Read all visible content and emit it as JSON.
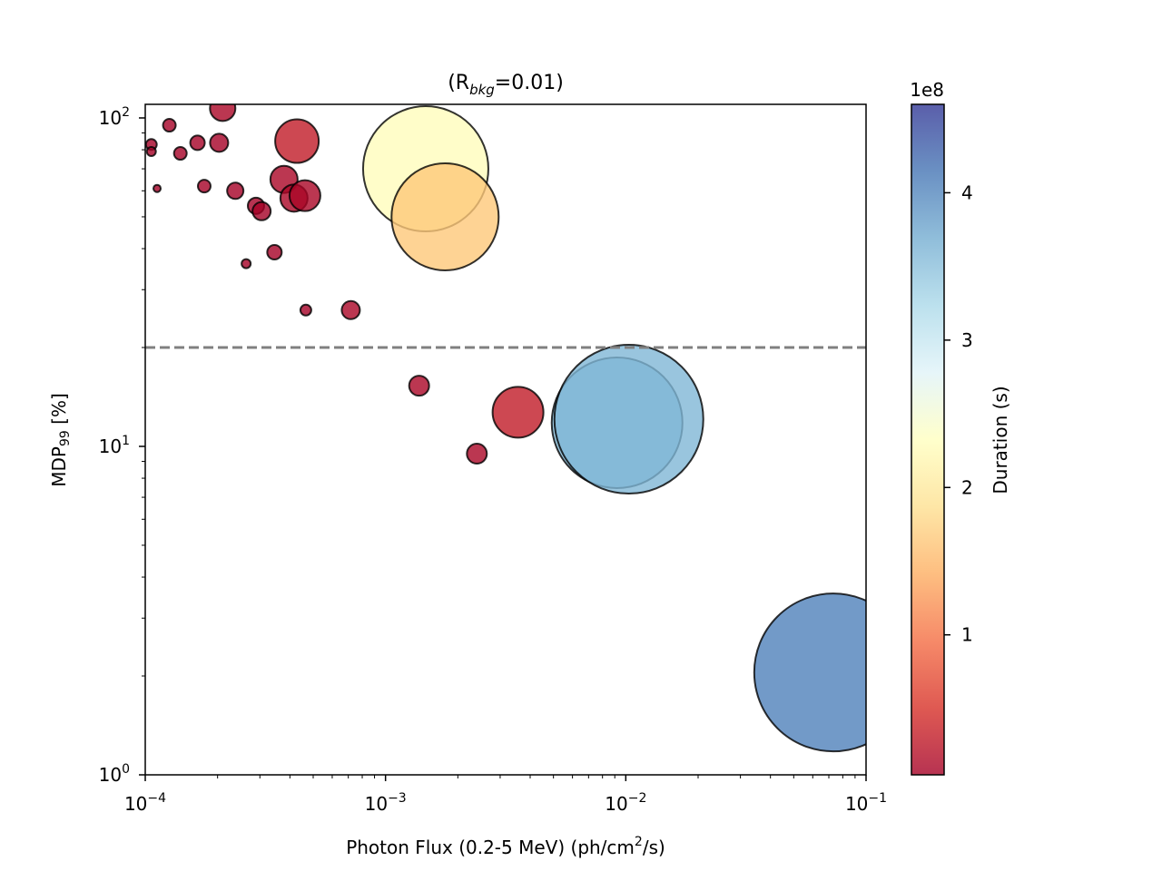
{
  "chart_data": {
    "type": "scatter",
    "title": {
      "pre": "(R",
      "sub": "bkg",
      "post": "=0.01)"
    },
    "xlabel": {
      "pre": "Photon Flux (0.2-5 MeV) (ph/cm",
      "sup": "2",
      "post": "/s)"
    },
    "ylabel": {
      "pre": "MDP",
      "sub": "99",
      "post": " [%]"
    },
    "x_scale": "log",
    "y_scale": "log",
    "xlim": [
      0.0001,
      0.1
    ],
    "ylim": [
      1,
      110
    ],
    "x_ticks": [
      {
        "value": 0.0001,
        "base": "10",
        "exp": "−4"
      },
      {
        "value": 0.001,
        "base": "10",
        "exp": "−3"
      },
      {
        "value": 0.01,
        "base": "10",
        "exp": "−2"
      },
      {
        "value": 0.1,
        "base": "10",
        "exp": "−1"
      }
    ],
    "y_ticks": [
      {
        "value": 1,
        "base": "10",
        "exp": "0"
      },
      {
        "value": 10,
        "base": "10",
        "exp": "1"
      },
      {
        "value": 100,
        "base": "10",
        "exp": "2"
      }
    ],
    "threshold": {
      "y": 20,
      "style": "dashed",
      "color": "#808080"
    },
    "colorbar": {
      "label": "Duration (s)",
      "offset_text": "1e8",
      "range": [
        0.05,
        4.6
      ],
      "ticks": [
        "1",
        "2",
        "3",
        "4"
      ],
      "tick_values": [
        1,
        2,
        3,
        4
      ],
      "colormap": "RdYlBu",
      "stops": [
        "#a50026",
        "#d73027",
        "#f46d43",
        "#fdae61",
        "#fee090",
        "#ffffbf",
        "#e0f3f8",
        "#abd9e9",
        "#74add1",
        "#4575b4",
        "#313695"
      ]
    },
    "points": [
      {
        "x": 0.000106,
        "y": 83,
        "size": 6,
        "duration": 0.05
      },
      {
        "x": 0.000106,
        "y": 79,
        "size": 5,
        "duration": 0.05
      },
      {
        "x": 0.000112,
        "y": 61,
        "size": 4,
        "duration": 0.05
      },
      {
        "x": 0.000126,
        "y": 95,
        "size": 7,
        "duration": 0.05
      },
      {
        "x": 0.00014,
        "y": 78,
        "size": 7,
        "duration": 0.05
      },
      {
        "x": 0.000165,
        "y": 84,
        "size": 8,
        "duration": 0.05
      },
      {
        "x": 0.000176,
        "y": 62,
        "size": 7,
        "duration": 0.05
      },
      {
        "x": 0.000203,
        "y": 84,
        "size": 10,
        "duration": 0.05
      },
      {
        "x": 0.00021,
        "y": 107,
        "size": 14,
        "duration": 0.1
      },
      {
        "x": 0.000237,
        "y": 60,
        "size": 9,
        "duration": 0.05
      },
      {
        "x": 0.000263,
        "y": 36,
        "size": 5,
        "duration": 0.05
      },
      {
        "x": 0.000289,
        "y": 54,
        "size": 9,
        "duration": 0.05
      },
      {
        "x": 0.000305,
        "y": 52,
        "size": 10,
        "duration": 0.05
      },
      {
        "x": 0.000345,
        "y": 39,
        "size": 8,
        "duration": 0.05
      },
      {
        "x": 0.000378,
        "y": 65,
        "size": 15,
        "duration": 0.1
      },
      {
        "x": 0.000416,
        "y": 57,
        "size": 15,
        "duration": 0.1
      },
      {
        "x": 0.000428,
        "y": 85,
        "size": 24,
        "duration": 0.3
      },
      {
        "x": 0.000462,
        "y": 58,
        "size": 17,
        "duration": 0.1
      },
      {
        "x": 0.000466,
        "y": 26,
        "size": 6,
        "duration": 0.03
      },
      {
        "x": 0.000717,
        "y": 26,
        "size": 10,
        "duration": 0.1
      },
      {
        "x": 0.00138,
        "y": 15.3,
        "size": 11,
        "duration": 0.1
      },
      {
        "x": 0.00147,
        "y": 70,
        "size": 69,
        "duration": 2.3
      },
      {
        "x": 0.00177,
        "y": 50,
        "size": 59,
        "duration": 1.65
      },
      {
        "x": 0.0024,
        "y": 9.5,
        "size": 11,
        "duration": 0.1
      },
      {
        "x": 0.00356,
        "y": 12.7,
        "size": 28,
        "duration": 0.3
      },
      {
        "x": 0.0092,
        "y": 11.8,
        "size": 72,
        "duration": 3.55
      },
      {
        "x": 0.0103,
        "y": 12.1,
        "size": 82,
        "duration": 3.6
      },
      {
        "x": 0.073,
        "y": 2.05,
        "size": 87,
        "duration": 4.05
      }
    ]
  }
}
